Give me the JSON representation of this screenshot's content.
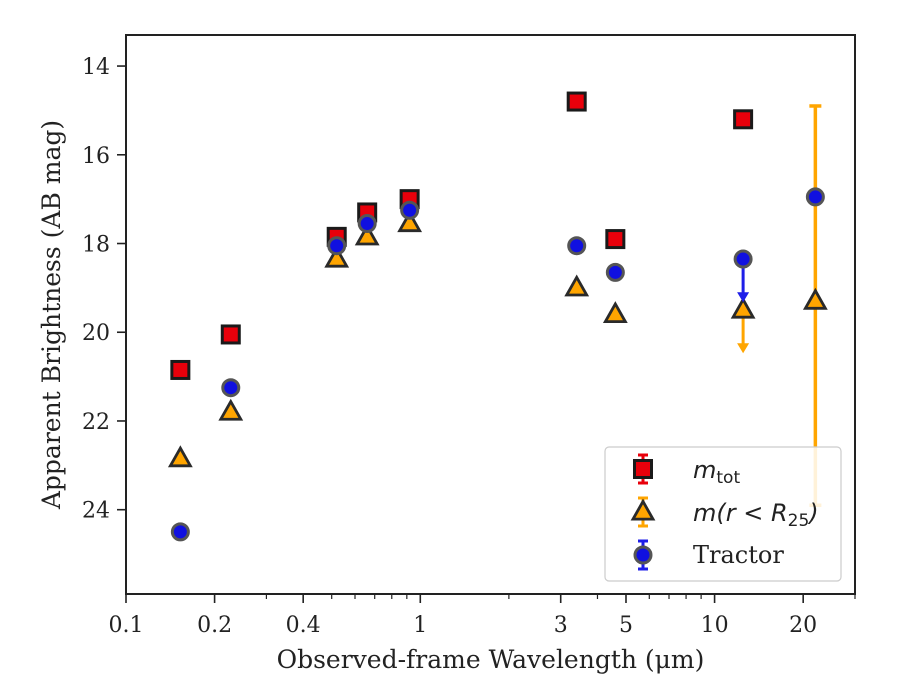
{
  "chart_data": {
    "type": "scatter",
    "xlabel": "Observed-frame Wavelength (μm)",
    "ylabel": "Apparent Brightness (AB mag)",
    "x_scale": "log",
    "y_inverted": true,
    "xlim": [
      0.1,
      30
    ],
    "ylim": [
      25.9,
      13.3
    ],
    "x_ticks": [
      {
        "value": 0.1,
        "label": "0.1"
      },
      {
        "value": 0.2,
        "label": "0.2"
      },
      {
        "value": 0.4,
        "label": "0.4"
      },
      {
        "value": 1,
        "label": "1"
      },
      {
        "value": 3,
        "label": "3"
      },
      {
        "value": 5,
        "label": "5"
      },
      {
        "value": 10,
        "label": "10"
      },
      {
        "value": 20,
        "label": "20"
      }
    ],
    "y_ticks": [
      {
        "value": 14,
        "label": "14"
      },
      {
        "value": 16,
        "label": "16"
      },
      {
        "value": 18,
        "label": "18"
      },
      {
        "value": 20,
        "label": "20"
      },
      {
        "value": 22,
        "label": "22"
      },
      {
        "value": 24,
        "label": "24"
      }
    ],
    "legend_position": "bottom-right",
    "grid": false,
    "series": [
      {
        "name": "m_tot",
        "legend_main": "m",
        "legend_sub": "tot",
        "marker": "square",
        "face_color": "#e8000b",
        "edge_color": "#1a1a1a",
        "err_color": "#e8000b",
        "points": [
          {
            "x": 0.153,
            "y": 20.85
          },
          {
            "x": 0.227,
            "y": 20.05
          },
          {
            "x": 0.52,
            "y": 17.85
          },
          {
            "x": 0.66,
            "y": 17.3
          },
          {
            "x": 0.92,
            "y": 17.0
          },
          {
            "x": 3.4,
            "y": 14.8
          },
          {
            "x": 4.6,
            "y": 17.9
          },
          {
            "x": 12.5,
            "y": 15.2
          }
        ]
      },
      {
        "name": "m(r < R25)",
        "legend_main": "m(r < R",
        "legend_sub": "25",
        "legend_close": ")",
        "marker": "triangle",
        "face_color": "#ffa500",
        "edge_color": "#2a2a2a",
        "err_color": "#ffa500",
        "points": [
          {
            "x": 0.153,
            "y": 22.85
          },
          {
            "x": 0.227,
            "y": 21.8
          },
          {
            "x": 0.52,
            "y": 18.35
          },
          {
            "x": 0.66,
            "y": 17.85
          },
          {
            "x": 0.92,
            "y": 17.55
          },
          {
            "x": 3.4,
            "y": 19.0
          },
          {
            "x": 4.6,
            "y": 19.6
          },
          {
            "x": 12.5,
            "y": 19.5,
            "upper_limit_to": 20.45
          },
          {
            "x": 22.0,
            "y": 19.3,
            "err_low": 14.9,
            "err_high": 23.9
          }
        ]
      },
      {
        "name": "Tractor",
        "legend_main": "Tractor",
        "marker": "circle",
        "face_color": "#1010e0",
        "edge_color": "#555555",
        "err_color": "#1e1ee8",
        "points": [
          {
            "x": 0.153,
            "y": 24.5
          },
          {
            "x": 0.227,
            "y": 21.25
          },
          {
            "x": 0.52,
            "y": 18.05
          },
          {
            "x": 0.66,
            "y": 17.55
          },
          {
            "x": 0.92,
            "y": 17.25
          },
          {
            "x": 3.4,
            "y": 18.05
          },
          {
            "x": 4.6,
            "y": 18.65
          },
          {
            "x": 12.5,
            "y": 18.35,
            "upper_limit_to": 19.3
          },
          {
            "x": 22.0,
            "y": 16.95
          }
        ]
      }
    ]
  }
}
